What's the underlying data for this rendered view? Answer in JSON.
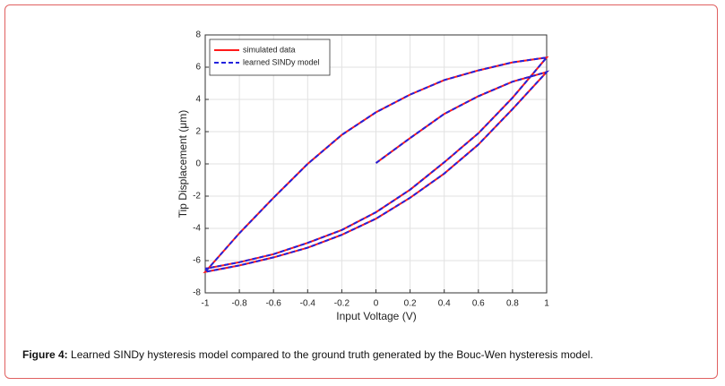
{
  "chart_data": {
    "type": "line",
    "xlabel": "Input Voltage (V)",
    "ylabel": "Tip Displacement (μm)",
    "x": [
      0,
      0.2,
      0.4,
      0.6,
      0.8,
      1,
      0.8,
      0.6,
      0.4,
      0.2,
      0,
      -0.2,
      -0.4,
      -0.6,
      -0.8,
      -1,
      -0.8,
      -0.6,
      -0.4,
      -0.2,
      0,
      0.2,
      0.4,
      0.6,
      0.8,
      1,
      0.8,
      0.6,
      0.4,
      0.2,
      0,
      -0.2,
      -0.4,
      -0.6,
      -0.8,
      -1
    ],
    "series": [
      {
        "name": "simulated data",
        "color": "#ff1a1a",
        "dash": false,
        "values": [
          0.05,
          1.6,
          3.1,
          4.2,
          5.1,
          5.7,
          3.4,
          1.2,
          -0.6,
          -2.1,
          -3.4,
          -4.4,
          -5.2,
          -5.8,
          -6.3,
          -6.7,
          -4.3,
          -2.1,
          0,
          1.8,
          3.2,
          4.3,
          5.2,
          5.8,
          6.3,
          6.6,
          4.1,
          1.9,
          0.1,
          -1.6,
          -3.0,
          -4.1,
          -4.9,
          -5.6,
          -6.1,
          -6.5
        ]
      },
      {
        "name": "learned SINDy model",
        "color": "#2222dd",
        "dash": true,
        "values": [
          0.05,
          1.6,
          3.1,
          4.2,
          5.1,
          5.7,
          3.4,
          1.2,
          -0.6,
          -2.1,
          -3.4,
          -4.4,
          -5.2,
          -5.8,
          -6.3,
          -6.7,
          -4.3,
          -2.1,
          0,
          1.8,
          3.2,
          4.3,
          5.2,
          5.8,
          6.3,
          6.6,
          4.1,
          1.9,
          0.1,
          -1.6,
          -3.0,
          -4.1,
          -4.9,
          -5.6,
          -6.1,
          -6.5
        ]
      }
    ],
    "xlim": [
      -1,
      1
    ],
    "xticks": [
      -1,
      -0.8,
      -0.6,
      -0.4,
      -0.2,
      0,
      0.2,
      0.4,
      0.6,
      0.8,
      1
    ],
    "ylim": [
      -8,
      8
    ],
    "yticks": [
      -8,
      -6,
      -4,
      -2,
      0,
      2,
      4,
      6,
      8
    ],
    "grid": true,
    "legend": "top-left"
  },
  "caption": {
    "label": "Figure 4:",
    "text": "Learned SINDy hysteresis model compared to the ground truth generated by the Bouc-Wen hysteresis model."
  }
}
